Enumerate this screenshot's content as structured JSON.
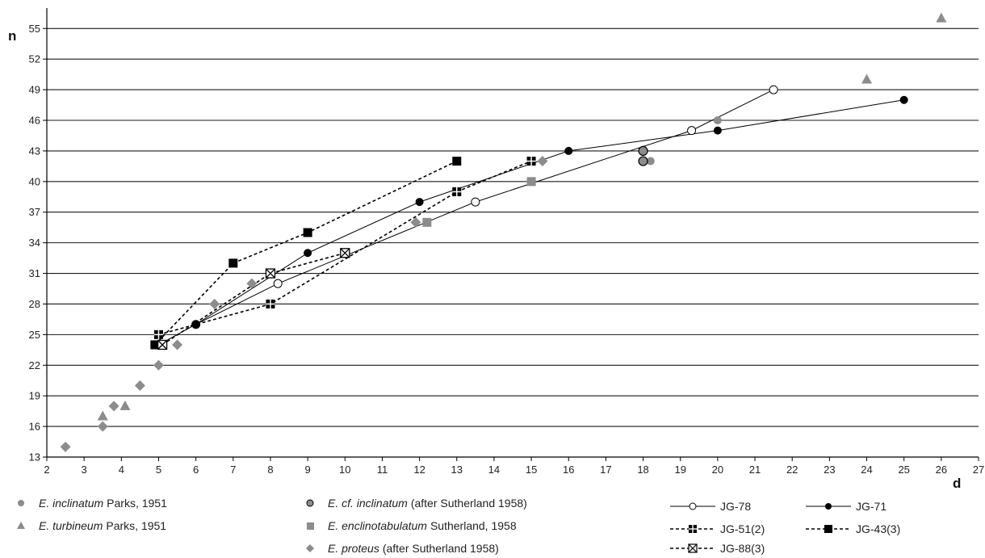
{
  "chart_data": {
    "type": "scatter",
    "xlabel": "d",
    "ylabel": "n",
    "xlim": [
      2,
      27
    ],
    "ylim": [
      13,
      57
    ],
    "xticks": [
      2,
      3,
      4,
      5,
      6,
      7,
      8,
      9,
      10,
      11,
      12,
      13,
      14,
      15,
      16,
      17,
      18,
      19,
      20,
      21,
      22,
      23,
      24,
      25,
      26,
      27
    ],
    "yticks": [
      13,
      16,
      19,
      22,
      25,
      28,
      31,
      34,
      37,
      40,
      43,
      46,
      49,
      52,
      55
    ],
    "grid": "horizontal",
    "legend_position": "bottom",
    "series": [
      {
        "name": "E. inclinatum",
        "name_suffix": "Parks, 1951",
        "marker": "circle",
        "color": "#8c8c8c",
        "line": "none",
        "points": [
          [
            18.2,
            42
          ],
          [
            20,
            46
          ]
        ]
      },
      {
        "name": "E. cf. inclinatum",
        "name_suffix": "(after Sutherland 1958)",
        "marker": "circle-outlined",
        "color": "#8c8c8c",
        "line": "none",
        "points": [
          [
            18,
            43
          ],
          [
            18,
            42
          ]
        ]
      },
      {
        "name": "E. turbineum",
        "name_suffix": "Parks, 1951",
        "marker": "triangle",
        "color": "#8c8c8c",
        "line": "none",
        "points": [
          [
            3.5,
            17
          ],
          [
            4.1,
            18
          ],
          [
            24,
            50
          ],
          [
            26,
            56
          ]
        ]
      },
      {
        "name": "E. enclinotabulatum",
        "name_suffix": "Sutherland, 1958",
        "marker": "square",
        "color": "#8c8c8c",
        "line": "none",
        "points": [
          [
            12.2,
            36
          ],
          [
            15,
            40
          ]
        ]
      },
      {
        "name": "E. proteus",
        "name_suffix": "(after Sutherland 1958)",
        "marker": "diamond",
        "color": "#8c8c8c",
        "line": "none",
        "points": [
          [
            2.5,
            14
          ],
          [
            3.5,
            16
          ],
          [
            3.8,
            18
          ],
          [
            4.5,
            20
          ],
          [
            5,
            22
          ],
          [
            5.5,
            24
          ],
          [
            6.5,
            28
          ],
          [
            7.5,
            30
          ],
          [
            11.9,
            36
          ],
          [
            15.3,
            42
          ]
        ]
      },
      {
        "name": "JG-78",
        "marker": "circle-open",
        "color": "#000000",
        "line": "solid",
        "points": [
          [
            5,
            24
          ],
          [
            6,
            26
          ],
          [
            8.2,
            30
          ],
          [
            13.5,
            38
          ],
          [
            19.3,
            45
          ],
          [
            21.5,
            49
          ]
        ]
      },
      {
        "name": "JG-71",
        "marker": "circle",
        "color": "#000000",
        "line": "solid",
        "points": [
          [
            6,
            26
          ],
          [
            9,
            33
          ],
          [
            12,
            38
          ],
          [
            16,
            43
          ],
          [
            20,
            45
          ],
          [
            25,
            48
          ]
        ]
      },
      {
        "name": "JG-51(2)",
        "marker": "square-cross",
        "color": "#000000",
        "line": "dashed",
        "points": [
          [
            5,
            25
          ],
          [
            8,
            28
          ],
          [
            13,
            39
          ],
          [
            15,
            42
          ]
        ]
      },
      {
        "name": "JG-43(3)",
        "marker": "square",
        "color": "#000000",
        "line": "dashed",
        "points": [
          [
            4.9,
            24
          ],
          [
            7,
            32
          ],
          [
            9,
            35
          ],
          [
            13,
            42
          ]
        ]
      },
      {
        "name": "JG-88(3)",
        "marker": "square-x",
        "color": "#000000",
        "line": "dashed",
        "points": [
          [
            5.1,
            24
          ],
          [
            8,
            31
          ],
          [
            10,
            33
          ]
        ]
      }
    ]
  }
}
